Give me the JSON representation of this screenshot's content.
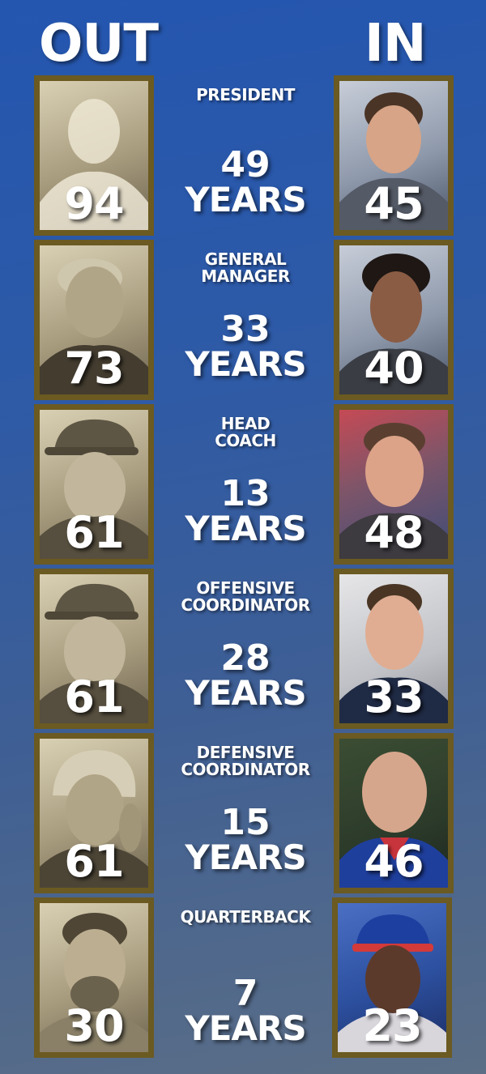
{
  "headers": {
    "out": "OUT",
    "in": "IN"
  },
  "rows": [
    {
      "role": "PRESIDENT",
      "years_num": "49",
      "years_label": "YEARS",
      "out_age": "94",
      "in_age": "45"
    },
    {
      "role": "GENERAL\nMANAGER",
      "years_num": "33",
      "years_label": "YEARS",
      "out_age": "73",
      "in_age": "40"
    },
    {
      "role": "HEAD\nCOACH",
      "years_num": "13",
      "years_label": "YEARS",
      "out_age": "61",
      "in_age": "48"
    },
    {
      "role": "OFFENSIVE\nCOORDINATOR",
      "years_num": "28",
      "years_label": "YEARS",
      "out_age": "61",
      "in_age": "33"
    },
    {
      "role": "DEFENSIVE\nCOORDINATOR",
      "years_num": "15",
      "years_label": "YEARS",
      "out_age": "61",
      "in_age": "46"
    },
    {
      "role": "QUARTERBACK",
      "years_num": "7",
      "years_label": "YEARS",
      "out_age": "30",
      "in_age": "23"
    }
  ],
  "colors": {
    "background_top": "#2456b0",
    "background_bottom": "#5b6e86",
    "frame": "#6b5a21",
    "text": "#ffffff"
  }
}
